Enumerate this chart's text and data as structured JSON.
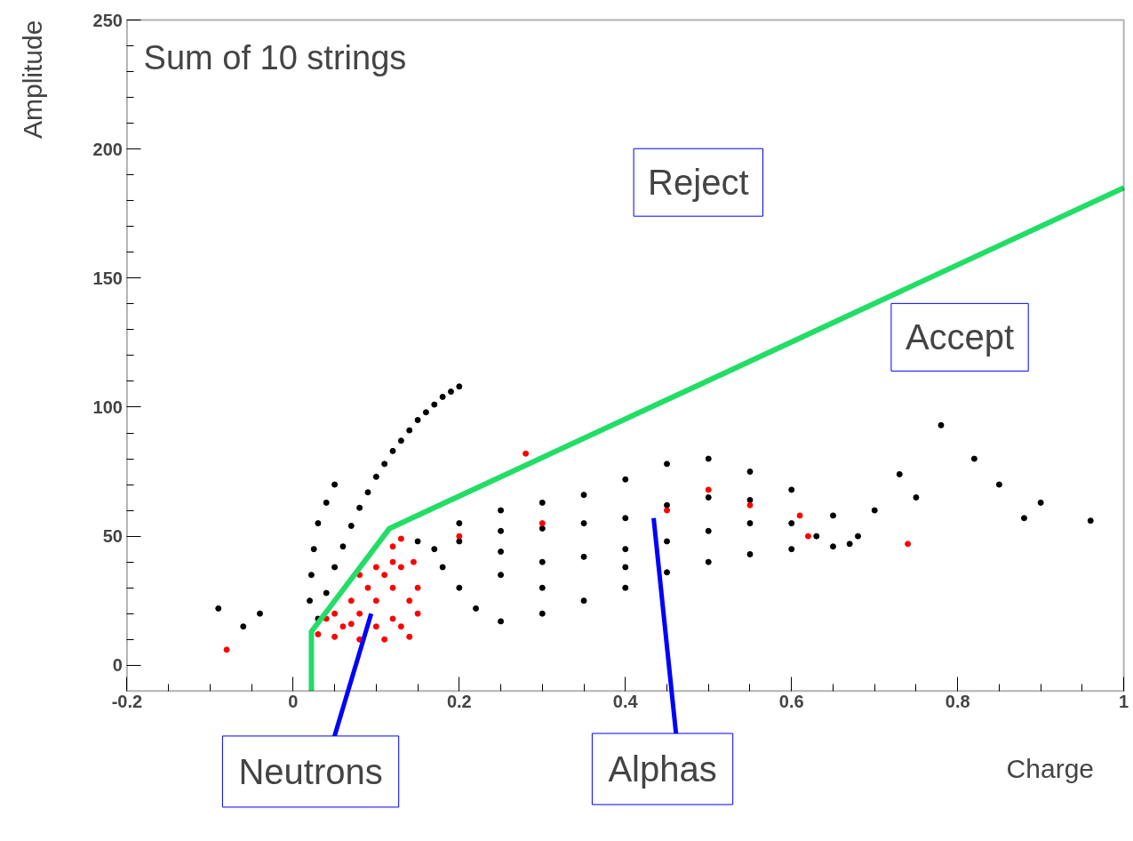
{
  "chart_data": {
    "type": "scatter",
    "title": "Sum of 10 strings",
    "xlabel": "Charge",
    "ylabel": "Amplitude",
    "xlim": [
      -0.2,
      1
    ],
    "ylim": [
      -10,
      250
    ],
    "xticks": [
      -0.2,
      0,
      0.2,
      0.4,
      0.6,
      0.8,
      1
    ],
    "yticks": [
      0,
      50,
      100,
      150,
      200,
      250
    ],
    "grid": false,
    "annotations": [
      "Reject",
      "Accept",
      "Neutrons",
      "Alphas"
    ],
    "series": [
      {
        "color": "#000000",
        "x": [
          0.02,
          0.022,
          0.025,
          0.03,
          0.04,
          0.05,
          0.03,
          0.04,
          0.05,
          0.06,
          0.07,
          0.08,
          0.09,
          0.1,
          0.11,
          0.12,
          0.13,
          0.14,
          0.15,
          0.16,
          0.17,
          0.18,
          0.19,
          0.2,
          0.15,
          0.2,
          0.25,
          0.3,
          0.35,
          0.4,
          0.45,
          0.5,
          0.55,
          0.6,
          0.65,
          0.68,
          0.17,
          0.2,
          0.25,
          0.3,
          0.35,
          0.4,
          0.45,
          0.5,
          0.55,
          0.6,
          0.63,
          0.67,
          0.18,
          0.2,
          0.22,
          0.25,
          0.3,
          0.35,
          0.4,
          0.45,
          0.5,
          0.55,
          0.6,
          0.65,
          0.25,
          0.3,
          0.35,
          0.4,
          0.45,
          0.5,
          0.55,
          0.25,
          0.3,
          0.4,
          -0.09,
          -0.04,
          -0.06,
          0.7,
          0.73,
          0.78,
          0.82,
          0.85,
          0.9,
          0.88,
          0.96,
          0.75
        ],
        "values": [
          25,
          35,
          45,
          55,
          63,
          70,
          18,
          28,
          38,
          46,
          54,
          61,
          67,
          73,
          78,
          83,
          87,
          91,
          95,
          98,
          101,
          104,
          106,
          108,
          48,
          55,
          60,
          63,
          66,
          72,
          78,
          80,
          75,
          68,
          58,
          50,
          45,
          48,
          52,
          53,
          55,
          57,
          62,
          65,
          64,
          55,
          50,
          47,
          38,
          30,
          22,
          17,
          20,
          25,
          30,
          36,
          40,
          43,
          45,
          46,
          35,
          40,
          42,
          45,
          48,
          52,
          55,
          44,
          30,
          38,
          22,
          20,
          15,
          60,
          74,
          93,
          80,
          70,
          63,
          57,
          56,
          65
        ]
      },
      {
        "color": "#ff0000",
        "x": [
          0.03,
          0.05,
          0.08,
          0.11,
          0.14,
          0.15,
          0.15,
          0.145,
          0.13,
          0.12,
          0.1,
          0.08,
          0.07,
          0.04,
          0.06,
          0.08,
          0.1,
          0.12,
          0.13,
          0.1,
          0.12,
          0.14,
          0.07,
          0.09,
          0.11,
          0.12,
          0.05,
          0.13,
          -0.08,
          0.3,
          0.45,
          0.5,
          0.55,
          0.61,
          0.62,
          0.74,
          0.28,
          0.2
        ],
        "values": [
          12,
          11,
          10,
          10,
          11,
          20,
          30,
          40,
          49,
          46,
          38,
          35,
          16,
          18,
          15,
          20,
          25,
          30,
          38,
          15,
          18,
          25,
          25,
          30,
          35,
          40,
          20,
          15,
          6,
          55,
          60,
          68,
          62,
          58,
          50,
          47,
          82,
          50
        ]
      },
      {
        "type": "line",
        "color": "#22dd66",
        "x": [
          0.022,
          0.022,
          0.116,
          1
        ],
        "values": [
          -10,
          13,
          53,
          185
        ]
      }
    ]
  }
}
